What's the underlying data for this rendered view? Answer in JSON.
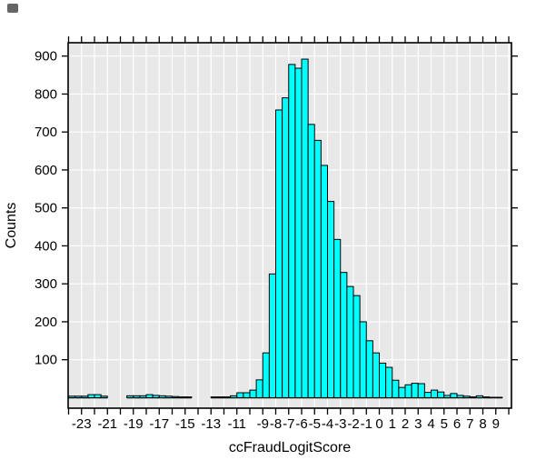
{
  "figure": {
    "x_axis_title": "ccFraudLogitScore",
    "y_axis_title": "Counts"
  },
  "chart_data": {
    "type": "bar",
    "subtype": "histogram",
    "title": "",
    "xlabel": "ccFraudLogitScore",
    "ylabel": "Counts",
    "bin_width": 0.5,
    "bin_starts": [
      -24,
      -23.5,
      -23,
      -22.5,
      -22,
      -21.5,
      -21,
      -20.5,
      -20,
      -19.5,
      -19,
      -18.5,
      -18,
      -17.5,
      -17,
      -16.5,
      -16,
      -15.5,
      -15,
      -14.5,
      -14,
      -13.5,
      -13,
      -12.5,
      -12,
      -11.5,
      -11,
      -10.5,
      -10,
      -9.5,
      -9,
      -8.5,
      -8,
      -7.5,
      -7,
      -6.5,
      -6,
      -5.5,
      -5,
      -4.5,
      -4,
      -3.5,
      -3,
      -2.5,
      -2,
      -1.5,
      -1,
      -0.5,
      0,
      0.5,
      1,
      1.5,
      2,
      2.5,
      3,
      3.5,
      4,
      4.5,
      5,
      5.5,
      6,
      6.5,
      7,
      7.5,
      8,
      8.5,
      9
    ],
    "counts": [
      4,
      4,
      4,
      8,
      8,
      4,
      0,
      0,
      0,
      5,
      5,
      5,
      8,
      6,
      5,
      4,
      3,
      2,
      2,
      0,
      0,
      0,
      2,
      2,
      2,
      5,
      13,
      13,
      20,
      47,
      118,
      326,
      758,
      790,
      878,
      868,
      892,
      720,
      678,
      612,
      517,
      417,
      330,
      293,
      269,
      200,
      150,
      118,
      91,
      80,
      46,
      27,
      34,
      38,
      37,
      14,
      20,
      15,
      6,
      11,
      6,
      4,
      2,
      5,
      2,
      1,
      1
    ],
    "xlim": [
      -24,
      10.2
    ],
    "ylim": [
      0,
      935
    ],
    "x_axis": {
      "tick_step": 1,
      "tick_min": -24,
      "tick_max": 10,
      "label_values": [
        -23,
        -21,
        -19,
        -17,
        -15,
        -13,
        -11,
        -9,
        -8,
        -7,
        -6,
        -5,
        -4,
        -3,
        -2,
        -1,
        0,
        1,
        2,
        3,
        4,
        5,
        6,
        7,
        8,
        9
      ]
    },
    "y_axis": {
      "tick_values": [
        100,
        200,
        300,
        400,
        500,
        600,
        700,
        800,
        900
      ]
    },
    "grid": {
      "vertical_step": 1,
      "horizontal_step": 100,
      "color": "#FFFFFF"
    },
    "legend": null,
    "colors": {
      "bar_fill": "#00FFFF",
      "bar_stroke": "#000000",
      "panel_background": "#E8E8E8",
      "frame": "#000000",
      "text": "#000000"
    }
  }
}
